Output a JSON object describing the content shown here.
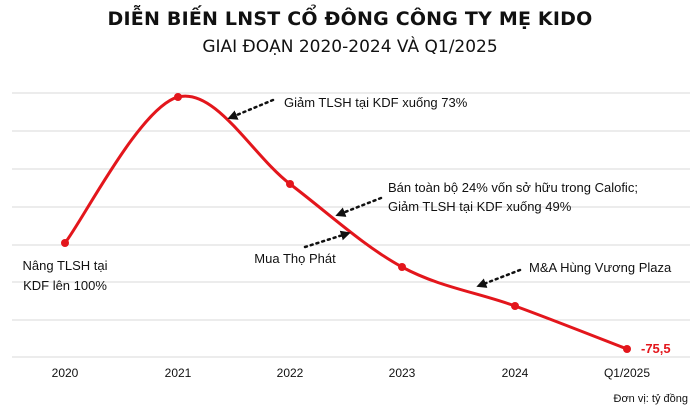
{
  "chart_data": {
    "type": "line",
    "title": "DIỄN BIẾN LNST CỔ ĐÔNG CÔNG TY MẸ KIDO",
    "subtitle": "GIAI ĐOẠN 2020-2024 VÀ Q1/2025",
    "categories": [
      "2020",
      "2021",
      "2022",
      "2023",
      "2024",
      "Q1/2025"
    ],
    "values": [
      null,
      null,
      null,
      null,
      null,
      -75.5
    ],
    "value_labels": [
      "",
      "",
      "",
      "",
      "",
      "-75,5"
    ],
    "unit_note": "Đơn vị: tỷ đồng",
    "grid": "horizontal",
    "line_color": "#e3161c",
    "annotations": [
      {
        "id": "ann-2020",
        "lines": [
          "Nâng TLSH tại",
          "KDF lên 100%"
        ]
      },
      {
        "id": "ann-2021",
        "lines": [
          "Giảm TLSH tại KDF xuống 73%"
        ]
      },
      {
        "id": "ann-2022",
        "lines": [
          "Bán toàn bộ 24% vốn sở hữu trong Calofic;",
          "Giảm TLSH tại KDF xuống 49%"
        ]
      },
      {
        "id": "ann-2022b",
        "lines": [
          "Mua Thọ Phát"
        ]
      },
      {
        "id": "ann-2024",
        "lines": [
          "M&A Hùng Vương Plaza"
        ]
      }
    ]
  }
}
